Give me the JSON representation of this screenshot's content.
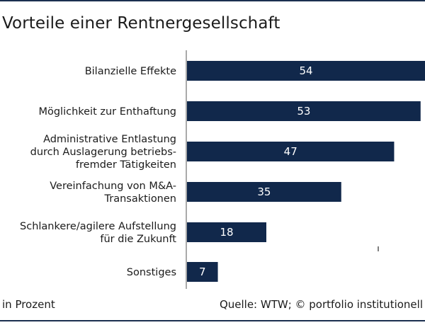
{
  "title": "Vorteile einer Rentnergesellschaft",
  "footer": {
    "unit_note": "in Prozent",
    "source": "Quelle: WTW; © portfolio institutionell"
  },
  "colors": {
    "bar": "#11284b",
    "rule": "#1a2f4f",
    "axis": "#555555"
  },
  "chart_data": {
    "type": "bar",
    "orientation": "horizontal",
    "title": "Vorteile einer Rentnergesellschaft",
    "xlabel": "",
    "ylabel": "",
    "xlim": [
      0,
      54
    ],
    "grid": false,
    "legend": "none",
    "categories": [
      "Bilanzielle Effekte",
      "Möglichkeit zur Enthaftung",
      "Administrative Entlastung durch Auslagerung betriebs-fremder Tätigkeiten",
      "Vereinfachung von M&A-Transaktionen",
      "Schlankere/agilere Aufstellung für die Zukunft",
      "Sonstiges"
    ],
    "category_lines": [
      [
        "Bilanzielle Effekte"
      ],
      [
        "Möglichkeit zur Enthaftung"
      ],
      [
        "Administrative Entlastung",
        "durch Auslagerung betriebs-",
        "fremder Tätigkeiten"
      ],
      [
        "Vereinfachung von M&A-",
        "Transaktionen"
      ],
      [
        "Schlankere/agilere Aufstellung",
        "für die Zukunft"
      ],
      [
        "Sonstiges"
      ]
    ],
    "values": [
      54,
      53,
      47,
      35,
      18,
      7
    ],
    "value_labels": [
      "54",
      "53",
      "47",
      "35",
      "18",
      "7"
    ]
  }
}
